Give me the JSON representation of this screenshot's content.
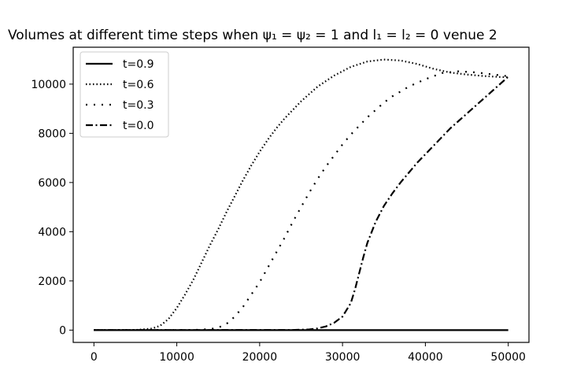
{
  "chart_data": {
    "type": "line",
    "title": "Volumes at different time steps when ψ₁ = ψ₂ = 1 and l₁ = l₂ = 0 venue 2",
    "xlabel": "",
    "ylabel": "",
    "xlim": [
      -2500,
      52500
    ],
    "ylim": [
      -500,
      11500
    ],
    "xticks": [
      0,
      10000,
      20000,
      30000,
      40000,
      50000
    ],
    "yticks": [
      0,
      2000,
      4000,
      6000,
      8000,
      10000
    ],
    "grid": false,
    "legend_position": "top-left",
    "series": [
      {
        "name": "t=0.9",
        "line_style": "solid",
        "color": "#000000",
        "points": [
          [
            0,
            0
          ],
          [
            10000,
            0
          ],
          [
            20000,
            0
          ],
          [
            30000,
            0
          ],
          [
            40000,
            0
          ],
          [
            50000,
            0
          ]
        ]
      },
      {
        "name": "t=0.6",
        "line_style": "dotted",
        "color": "#000000",
        "points": [
          [
            0,
            0
          ],
          [
            5000,
            5
          ],
          [
            7000,
            60
          ],
          [
            8000,
            180
          ],
          [
            9000,
            450
          ],
          [
            10000,
            900
          ],
          [
            11000,
            1450
          ],
          [
            12000,
            2050
          ],
          [
            13000,
            2750
          ],
          [
            14000,
            3450
          ],
          [
            15000,
            4100
          ],
          [
            16000,
            4800
          ],
          [
            17000,
            5450
          ],
          [
            18000,
            6100
          ],
          [
            19000,
            6700
          ],
          [
            20000,
            7250
          ],
          [
            21000,
            7750
          ],
          [
            22000,
            8200
          ],
          [
            23000,
            8600
          ],
          [
            24000,
            8950
          ],
          [
            25000,
            9300
          ],
          [
            27000,
            9900
          ],
          [
            29000,
            10350
          ],
          [
            31000,
            10700
          ],
          [
            33000,
            10920
          ],
          [
            35000,
            11000
          ],
          [
            37000,
            10960
          ],
          [
            39000,
            10820
          ],
          [
            41000,
            10620
          ],
          [
            43000,
            10470
          ],
          [
            45000,
            10390
          ],
          [
            47000,
            10330
          ],
          [
            49000,
            10290
          ],
          [
            50000,
            10280
          ]
        ]
      },
      {
        "name": "t=0.3",
        "line_style": "loosely-dotted",
        "color": "#000000",
        "points": [
          [
            0,
            0
          ],
          [
            12000,
            5
          ],
          [
            14000,
            40
          ],
          [
            15000,
            100
          ],
          [
            16000,
            250
          ],
          [
            17000,
            550
          ],
          [
            18000,
            950
          ],
          [
            19000,
            1450
          ],
          [
            20000,
            1950
          ],
          [
            21000,
            2550
          ],
          [
            22000,
            3150
          ],
          [
            23000,
            3750
          ],
          [
            24000,
            4400
          ],
          [
            25000,
            5000
          ],
          [
            26000,
            5600
          ],
          [
            27000,
            6150
          ],
          [
            28000,
            6650
          ],
          [
            29000,
            7100
          ],
          [
            30000,
            7550
          ],
          [
            31000,
            7950
          ],
          [
            32000,
            8300
          ],
          [
            33000,
            8650
          ],
          [
            34000,
            8950
          ],
          [
            35000,
            9250
          ],
          [
            36000,
            9500
          ],
          [
            37000,
            9700
          ],
          [
            38000,
            9900
          ],
          [
            39000,
            10050
          ],
          [
            40000,
            10200
          ],
          [
            42000,
            10450
          ],
          [
            44000,
            10520
          ],
          [
            46000,
            10480
          ],
          [
            48000,
            10400
          ],
          [
            50000,
            10320
          ]
        ]
      },
      {
        "name": "t=0.0",
        "line_style": "dashdot",
        "color": "#000000",
        "points": [
          [
            0,
            0
          ],
          [
            24000,
            5
          ],
          [
            26000,
            30
          ],
          [
            27000,
            70
          ],
          [
            28000,
            150
          ],
          [
            29000,
            300
          ],
          [
            30000,
            550
          ],
          [
            31000,
            1100
          ],
          [
            31500,
            1650
          ],
          [
            32000,
            2300
          ],
          [
            32500,
            2950
          ],
          [
            33000,
            3550
          ],
          [
            34000,
            4400
          ],
          [
            35000,
            5050
          ],
          [
            36000,
            5550
          ],
          [
            37000,
            6000
          ],
          [
            38000,
            6400
          ],
          [
            39000,
            6800
          ],
          [
            40000,
            7150
          ],
          [
            41000,
            7500
          ],
          [
            42000,
            7850
          ],
          [
            43000,
            8200
          ],
          [
            44000,
            8500
          ],
          [
            45000,
            8800
          ],
          [
            46000,
            9100
          ],
          [
            47000,
            9400
          ],
          [
            48000,
            9700
          ],
          [
            49000,
            10000
          ],
          [
            50000,
            10300
          ]
        ]
      }
    ]
  }
}
